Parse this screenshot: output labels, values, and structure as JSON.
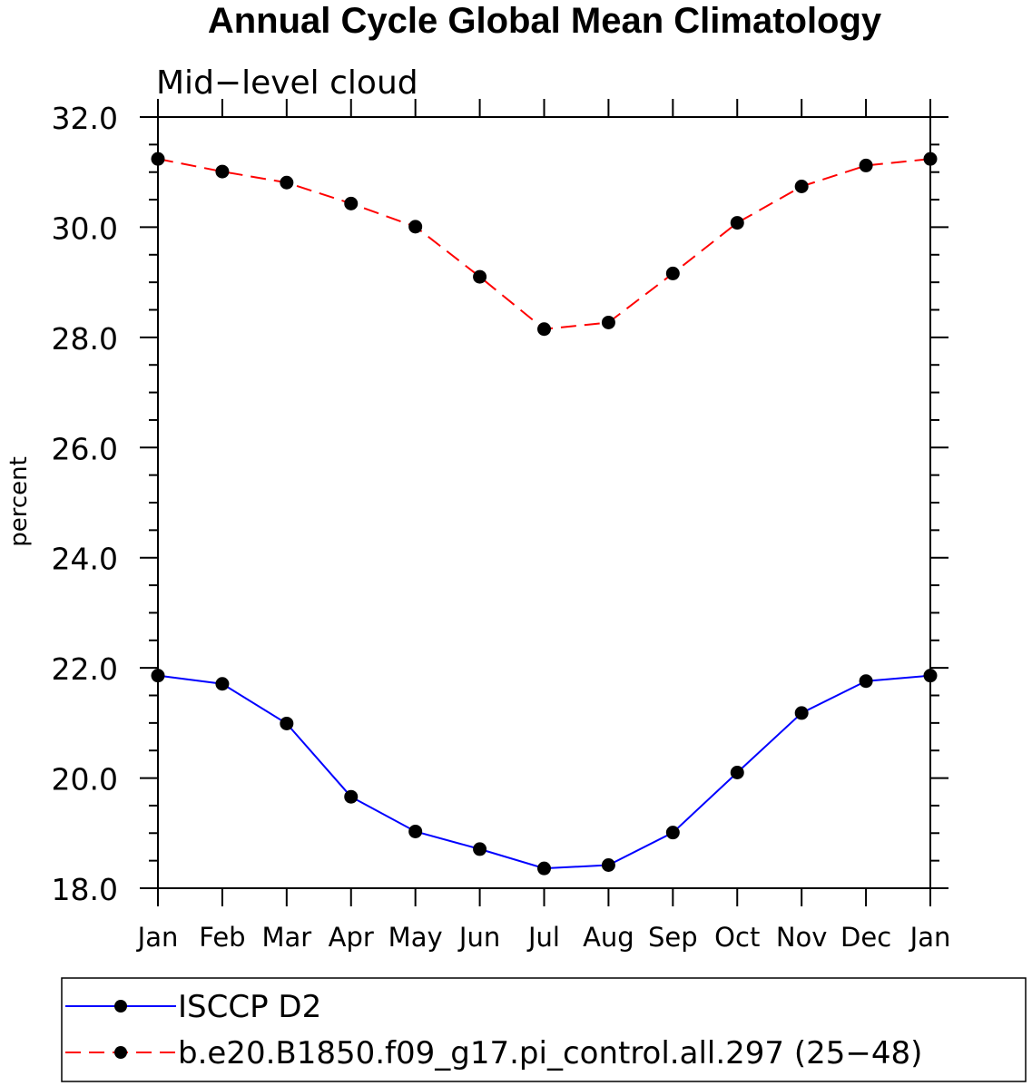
{
  "chart_data": {
    "type": "line",
    "title": "Annual Cycle Global Mean Climatology",
    "subtitle": "Mid−level cloud",
    "xlabel": "",
    "ylabel": "percent",
    "categories": [
      "Jan",
      "Feb",
      "Mar",
      "Apr",
      "May",
      "Jun",
      "Jul",
      "Aug",
      "Sep",
      "Oct",
      "Nov",
      "Dec",
      "Jan"
    ],
    "ylim": [
      18.0,
      32.0
    ],
    "yticks": [
      "18.0",
      "20.0",
      "22.0",
      "24.0",
      "26.0",
      "28.0",
      "30.0",
      "32.0"
    ],
    "grid": false,
    "legend_position": "bottom",
    "series": [
      {
        "name": "ISCCP D2",
        "color": "#0000ff",
        "dash": "solid",
        "marker": "filled-circle",
        "values": [
          21.86,
          21.71,
          20.99,
          19.66,
          19.03,
          18.71,
          18.36,
          18.42,
          19.01,
          20.1,
          21.18,
          21.76,
          21.86
        ]
      },
      {
        "name": "b.e20.B1850.f09_g17.pi_control.all.297 (25−48)",
        "color": "#ff0000",
        "dash": "dashed",
        "marker": "filled-circle",
        "values": [
          31.24,
          31.01,
          30.81,
          30.43,
          30.01,
          29.1,
          28.15,
          28.27,
          29.16,
          30.08,
          30.74,
          31.12,
          31.24
        ]
      }
    ]
  }
}
